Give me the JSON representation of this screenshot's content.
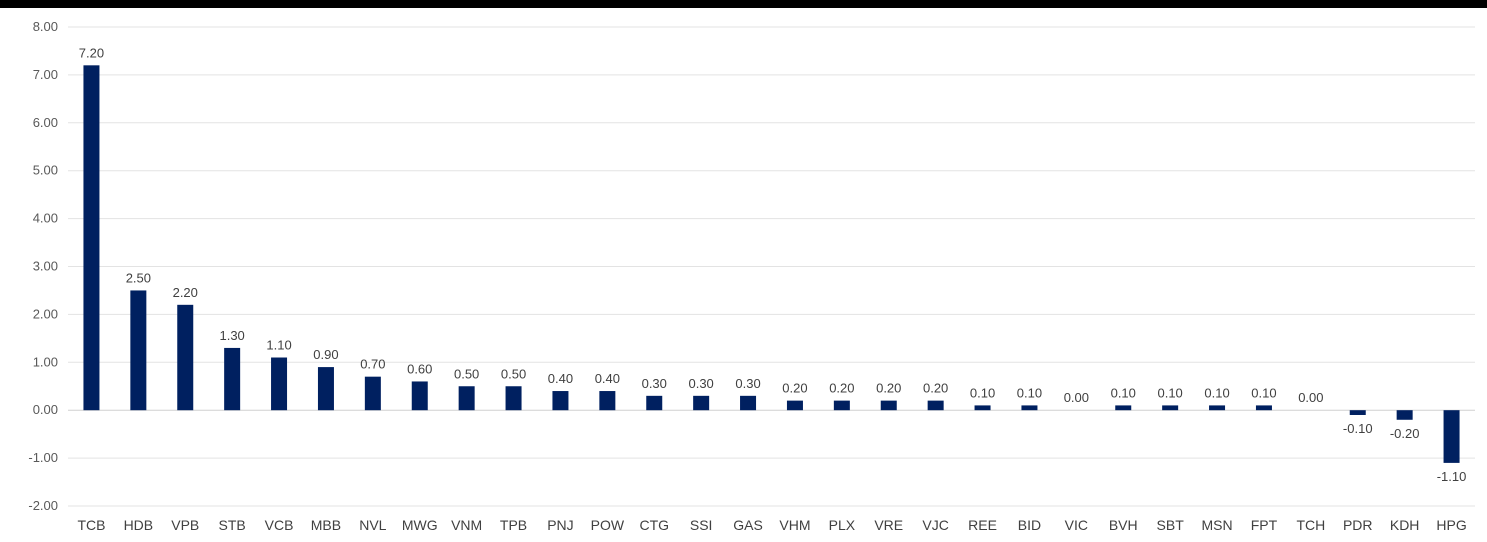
{
  "chart_data": {
    "type": "bar",
    "categories": [
      "TCB",
      "HDB",
      "VPB",
      "STB",
      "VCB",
      "MBB",
      "NVL",
      "MWG",
      "VNM",
      "TPB",
      "PNJ",
      "POW",
      "CTG",
      "SSI",
      "GAS",
      "VHM",
      "PLX",
      "VRE",
      "VJC",
      "REE",
      "BID",
      "VIC",
      "BVH",
      "SBT",
      "MSN",
      "FPT",
      "TCH",
      "PDR",
      "KDH",
      "HPG"
    ],
    "values": [
      7.2,
      2.5,
      2.2,
      1.3,
      1.1,
      0.9,
      0.7,
      0.6,
      0.5,
      0.5,
      0.4,
      0.4,
      0.3,
      0.3,
      0.3,
      0.2,
      0.2,
      0.2,
      0.2,
      0.1,
      0.1,
      0.0,
      0.1,
      0.1,
      0.1,
      0.1,
      0.0,
      -0.1,
      -0.2,
      -1.1
    ],
    "data_labels": [
      "7.20",
      "2.50",
      "2.20",
      "1.30",
      "1.10",
      "0.90",
      "0.70",
      "0.60",
      "0.50",
      "0.50",
      "0.40",
      "0.40",
      "0.30",
      "0.30",
      "0.30",
      "0.20",
      "0.20",
      "0.20",
      "0.20",
      "0.10",
      "0.10",
      "0.00",
      "0.10",
      "0.10",
      "0.10",
      "0.10",
      "0.00",
      "-0.10",
      "-0.20",
      "-1.10"
    ],
    "ylim": [
      -2,
      8
    ],
    "y_ticks": [
      8,
      7,
      6,
      5,
      4,
      3,
      2,
      1,
      0,
      -1,
      -2
    ],
    "y_tick_labels": [
      "8.00",
      "7.00",
      "6.00",
      "5.00",
      "4.00",
      "3.00",
      "2.00",
      "1.00",
      "0.00",
      "-1.00",
      "-2.00"
    ],
    "grid": true,
    "bar_color": "#002060",
    "title": "",
    "xlabel": "",
    "ylabel": ""
  }
}
